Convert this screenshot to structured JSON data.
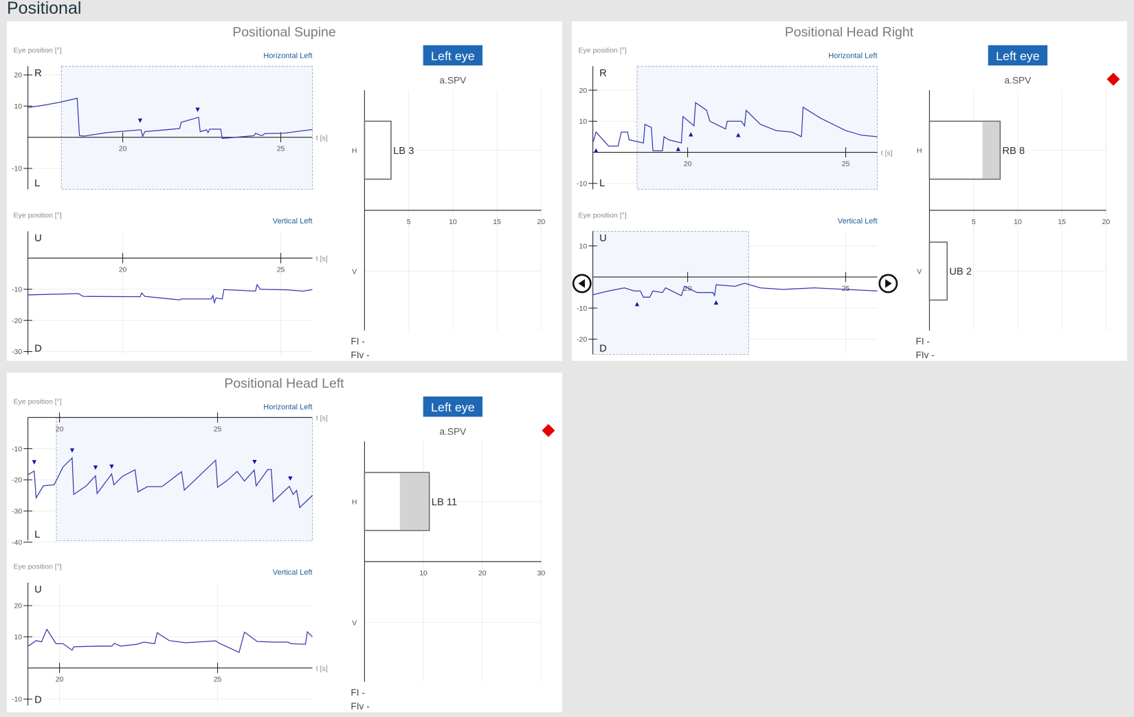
{
  "page": {
    "title": "Positional"
  },
  "colors": {
    "trace": "#3838b0",
    "marker": "#1515a5",
    "selection_fill": "#f3f7fd",
    "selection_stroke": "#a9b2c2",
    "button": "#1f68b5",
    "channel_label": "#1f5a94",
    "alert": "#e60000",
    "shaded_bar": "#d3d3d3"
  },
  "panels": [
    {
      "title": "Positional Supine",
      "horizontal": {
        "ylabel": "Eye position [°]",
        "channel": "Horizontal Left",
        "top_label": "R",
        "bottom_label": "L",
        "time_label": "t [s]",
        "xlim": [
          17,
          26
        ],
        "ylim": [
          -16.7,
          22.8
        ],
        "xticks": [
          20,
          25
        ],
        "yticks": [
          20,
          10,
          -10
        ],
        "selection": [
          18.06,
          26
        ],
        "trace": [
          [
            17,
            9.5
          ],
          [
            17.5,
            10.3
          ],
          [
            18,
            11.2
          ],
          [
            18.56,
            12.5
          ],
          [
            18.63,
            0.5
          ],
          [
            18.8,
            0.4
          ],
          [
            19.5,
            1.5
          ],
          [
            20.58,
            2.4
          ],
          [
            20.63,
            0.3
          ],
          [
            20.7,
            1.8
          ],
          [
            21.8,
            2.8
          ],
          [
            21.85,
            4.8
          ],
          [
            22.4,
            6.4
          ],
          [
            22.45,
            1.8
          ],
          [
            22.65,
            2.4
          ],
          [
            22.7,
            1.5
          ],
          [
            22.75,
            2.6
          ],
          [
            23.1,
            2.6
          ],
          [
            23.15,
            -0.4
          ],
          [
            23.8,
            0.2
          ],
          [
            24.15,
            0.5
          ],
          [
            24.2,
            1.3
          ],
          [
            24.4,
            0.5
          ],
          [
            24.5,
            1.2
          ],
          [
            25.1,
            1.3
          ],
          [
            26,
            2.5
          ]
        ],
        "markers": {
          "direction": "down",
          "points": [
            [
              20.55,
              5.3
            ],
            [
              22.37,
              8.8
            ]
          ]
        }
      },
      "vertical": {
        "ylabel": "Eye position [°]",
        "channel": "Vertical Left",
        "top_label": "U",
        "bottom_label": "D",
        "time_label": "t [s]",
        "xlim": [
          17,
          26
        ],
        "ylim": [
          -30.9,
          8.6
        ],
        "xticks": [
          20,
          25
        ],
        "yticks": [
          -10,
          -20,
          -30
        ],
        "trace": [
          [
            17,
            -11.8
          ],
          [
            18.6,
            -11.4
          ],
          [
            18.75,
            -12.3
          ],
          [
            20.55,
            -12.4
          ],
          [
            20.6,
            -11.2
          ],
          [
            20.7,
            -12.3
          ],
          [
            21.8,
            -13.4
          ],
          [
            21.85,
            -13.1
          ],
          [
            22.8,
            -13.1
          ],
          [
            22.85,
            -12
          ],
          [
            22.9,
            -14.3
          ],
          [
            22.95,
            -12.8
          ],
          [
            23.15,
            -13.1
          ],
          [
            23.2,
            -10.1
          ],
          [
            24.2,
            -10.6
          ],
          [
            24.25,
            -8.5
          ],
          [
            24.35,
            -10
          ],
          [
            25.2,
            -10.2
          ],
          [
            25.7,
            -10.6
          ],
          [
            26,
            -10.1
          ]
        ]
      },
      "spv": {
        "eye_button": "Left eye",
        "title": "a.SPV",
        "xlim": [
          0,
          20
        ],
        "xticks": [
          5,
          10,
          15,
          20
        ],
        "rows": [
          {
            "axis_label": "H",
            "value": 3,
            "value_label": "LB 3"
          },
          {
            "axis_label": "V",
            "value": 0
          }
        ],
        "fi": "FI -",
        "fiv": "FIv -",
        "alert": false
      }
    },
    {
      "title": "Positional Head Right",
      "horizontal": {
        "ylabel": "Eye position [°]",
        "channel": "Horizontal Left",
        "top_label": "R",
        "bottom_label": "L",
        "time_label": "t [s]",
        "xlim": [
          17,
          26
        ],
        "ylim": [
          -11.9,
          27.7
        ],
        "xticks": [
          20,
          25
        ],
        "yticks": [
          20,
          10,
          -10
        ],
        "selection": [
          18.4,
          26
        ],
        "trace": [
          [
            17,
            3
          ],
          [
            17.1,
            6.5
          ],
          [
            17.5,
            2
          ],
          [
            17.8,
            2
          ],
          [
            17.9,
            6.5
          ],
          [
            18.1,
            6.5
          ],
          [
            18.15,
            4
          ],
          [
            18.6,
            3
          ],
          [
            18.65,
            9
          ],
          [
            18.85,
            8
          ],
          [
            18.9,
            0.5
          ],
          [
            19.2,
            0.5
          ],
          [
            19.25,
            5
          ],
          [
            19.4,
            4
          ],
          [
            19.8,
            3
          ],
          [
            19.85,
            11.5
          ],
          [
            20.2,
            8.5
          ],
          [
            20.25,
            16
          ],
          [
            20.6,
            13.5
          ],
          [
            20.7,
            10
          ],
          [
            21.2,
            7.5
          ],
          [
            21.25,
            10
          ],
          [
            21.7,
            10
          ],
          [
            21.8,
            8.5
          ],
          [
            21.85,
            13.5
          ],
          [
            22.3,
            9
          ],
          [
            22.8,
            7
          ],
          [
            23.3,
            6.5
          ],
          [
            23.6,
            5
          ],
          [
            23.65,
            14.5
          ],
          [
            24.2,
            11
          ],
          [
            25,
            7
          ],
          [
            25.5,
            5.5
          ],
          [
            26,
            5
          ]
        ],
        "markers": {
          "direction": "up",
          "points": [
            [
              17.1,
              0.6
            ],
            [
              19.7,
              1.1
            ],
            [
              20.1,
              5.8
            ],
            [
              21.6,
              5.6
            ]
          ]
        }
      },
      "vertical": {
        "ylabel": "Eye position [°]",
        "channel": "Vertical Left",
        "top_label": "U",
        "bottom_label": "D",
        "time_label": "t [s]",
        "xlim": [
          17,
          26
        ],
        "ylim": [
          -24.9,
          14.7
        ],
        "xticks": [
          20,
          25
        ],
        "yticks": [
          10,
          -10,
          -20
        ],
        "selection": [
          17,
          21.93
        ],
        "trace": [
          [
            17,
            -5.7
          ],
          [
            17.5,
            -4.5
          ],
          [
            18,
            -3.5
          ],
          [
            18.3,
            -4.5
          ],
          [
            18.5,
            -4.5
          ],
          [
            18.6,
            -6.5
          ],
          [
            18.8,
            -6.5
          ],
          [
            18.9,
            -4.5
          ],
          [
            19.2,
            -5
          ],
          [
            19.3,
            -3.5
          ],
          [
            19.8,
            -6
          ],
          [
            19.9,
            -3
          ],
          [
            20.3,
            -5
          ],
          [
            20.8,
            -5
          ],
          [
            20.85,
            -6
          ],
          [
            20.9,
            -2.5
          ],
          [
            21.5,
            -3
          ],
          [
            21.8,
            -2
          ],
          [
            22.3,
            -3.5
          ],
          [
            23,
            -4
          ],
          [
            24,
            -3.5
          ],
          [
            25,
            -4
          ],
          [
            26,
            -4.5
          ]
        ],
        "markers": {
          "direction": "up",
          "points": [
            [
              18.4,
              -8.7
            ],
            [
              20.9,
              -8.2
            ]
          ]
        },
        "nav": true
      },
      "spv": {
        "eye_button": "Left eye",
        "title": "a.SPV",
        "xlim": [
          0,
          20
        ],
        "xticks": [
          5,
          10,
          15,
          20
        ],
        "rows": [
          {
            "axis_label": "H",
            "value": 8,
            "shaded_from": 6,
            "value_label": "RB 8"
          },
          {
            "axis_label": "V",
            "value": 2,
            "value_label": "UB 2"
          }
        ],
        "fi": "FI -",
        "fiv": "FIv -",
        "alert": true
      }
    },
    {
      "title": "Positional Head Left",
      "horizontal": {
        "ylabel": "Eye position [°]",
        "channel": "Horizontal Left",
        "top_label": "",
        "bottom_label": "L",
        "time_label": "t [s]",
        "xlim": [
          19,
          28
        ],
        "ylim": [
          -39.5,
          0
        ],
        "xticks": [
          20,
          25
        ],
        "yticks": [
          -10,
          -20,
          -30,
          -40
        ],
        "selection": [
          19.9,
          28
        ],
        "trace": [
          [
            19.01,
            -18.3
          ],
          [
            19.2,
            -17.2
          ],
          [
            19.26,
            -25.8
          ],
          [
            19.49,
            -21.9
          ],
          [
            19.83,
            -21.6
          ],
          [
            20.11,
            -15.9
          ],
          [
            20.4,
            -13
          ],
          [
            20.45,
            -24.7
          ],
          [
            20.85,
            -21.9
          ],
          [
            21.14,
            -18.7
          ],
          [
            21.19,
            -24.4
          ],
          [
            21.65,
            -18.1
          ],
          [
            21.72,
            -21.6
          ],
          [
            21.99,
            -18.9
          ],
          [
            22.39,
            -16.8
          ],
          [
            22.48,
            -23.9
          ],
          [
            22.78,
            -22.2
          ],
          [
            23.24,
            -22.2
          ],
          [
            23.41,
            -20.9
          ],
          [
            23.86,
            -17.4
          ],
          [
            23.95,
            -23.3
          ],
          [
            24.94,
            -13.7
          ],
          [
            25,
            -22.4
          ],
          [
            25.28,
            -20.4
          ],
          [
            25.62,
            -17.3
          ],
          [
            25.85,
            -20.4
          ],
          [
            26.16,
            -16.9
          ],
          [
            26.22,
            -21.9
          ],
          [
            26.59,
            -16.7
          ],
          [
            26.7,
            -16.7
          ],
          [
            26.76,
            -27
          ],
          [
            27.27,
            -22.1
          ],
          [
            27.39,
            -24.7
          ],
          [
            27.5,
            -23.4
          ],
          [
            27.6,
            -28.9
          ],
          [
            28,
            -25
          ]
        ],
        "markers": {
          "direction": "down",
          "points": [
            [
              19.2,
              -14.4
            ],
            [
              20.4,
              -10.6
            ],
            [
              21.14,
              -16.1
            ],
            [
              21.65,
              -15.8
            ],
            [
              26.17,
              -14.3
            ],
            [
              27.3,
              -19.6
            ]
          ]
        }
      },
      "vertical": {
        "ylabel": "Eye position [°]",
        "channel": "Vertical Left",
        "top_label": "U",
        "bottom_label": "D",
        "time_label": "t [s]",
        "xlim": [
          19,
          28
        ],
        "ylim": [
          -12.1,
          27.4
        ],
        "xticks": [
          20,
          25
        ],
        "yticks": [
          20,
          10,
          -10
        ],
        "trace": [
          [
            19.01,
            7
          ],
          [
            19.26,
            8.8
          ],
          [
            19.43,
            8.4
          ],
          [
            19.6,
            12.4
          ],
          [
            19.89,
            7.8
          ],
          [
            20.11,
            7.8
          ],
          [
            20.4,
            5.7
          ],
          [
            20.45,
            6.8
          ],
          [
            21.19,
            7
          ],
          [
            21.65,
            7
          ],
          [
            21.74,
            7.9
          ],
          [
            21.93,
            7
          ],
          [
            22.44,
            7.6
          ],
          [
            22.67,
            8.3
          ],
          [
            23.01,
            7.8
          ],
          [
            23.09,
            11.3
          ],
          [
            23.47,
            8.8
          ],
          [
            23.98,
            8.1
          ],
          [
            24.94,
            8.7
          ],
          [
            25.06,
            7.9
          ],
          [
            25.68,
            5
          ],
          [
            25.85,
            11.5
          ],
          [
            26.25,
            8.5
          ],
          [
            26.76,
            8.3
          ],
          [
            27.22,
            8.3
          ],
          [
            27.33,
            7.8
          ],
          [
            27.78,
            7.6
          ],
          [
            27.84,
            11.6
          ],
          [
            28,
            10
          ]
        ]
      },
      "spv": {
        "eye_button": "Left eye",
        "title": "a.SPV",
        "xlim": [
          0,
          30
        ],
        "xticks": [
          10,
          20,
          30
        ],
        "rows": [
          {
            "axis_label": "H",
            "value": 11,
            "shaded_from": 6,
            "value_label": "LB 11"
          },
          {
            "axis_label": "V",
            "value": 0
          }
        ],
        "fi": "FI -",
        "fiv": "FIv -",
        "alert": true
      }
    }
  ]
}
